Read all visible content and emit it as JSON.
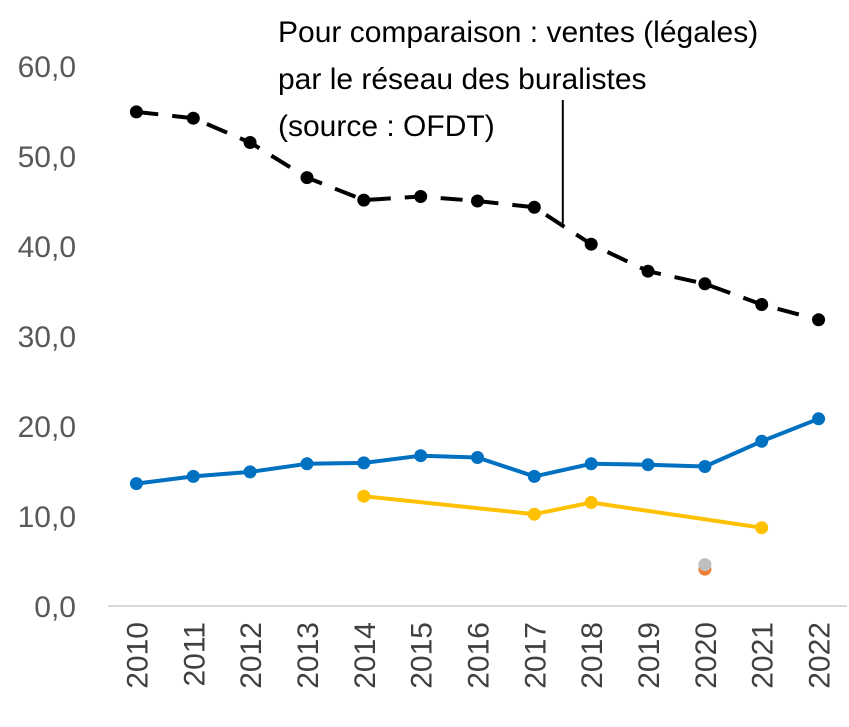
{
  "chart_data": {
    "type": "line",
    "title": "",
    "xlabel": "",
    "ylabel": "",
    "ylim": [
      0,
      60
    ],
    "yticks": [
      "0,0",
      "10,0",
      "20,0",
      "30,0",
      "40,0",
      "50,0",
      "60,0"
    ],
    "grid": false,
    "x": [
      2010,
      2011,
      2012,
      2013,
      2014,
      2015,
      2016,
      2017,
      2018,
      2019,
      2020,
      2021,
      2022
    ],
    "series": [
      {
        "name": "",
        "color": "#000000",
        "style": "dashed",
        "values": [
          54.9,
          54.2,
          51.5,
          47.6,
          45.1,
          45.5,
          45.0,
          44.3,
          40.2,
          37.2,
          35.8,
          33.5,
          31.8
        ]
      },
      {
        "name": "",
        "color": "#0070C0",
        "style": "solid",
        "values": [
          13.6,
          14.4,
          14.9,
          15.8,
          15.9,
          16.7,
          16.5,
          14.4,
          15.8,
          15.7,
          15.5,
          18.3,
          20.8
        ]
      },
      {
        "name": "",
        "color": "#FFC000",
        "style": "solid",
        "values": [
          null,
          null,
          null,
          null,
          12.2,
          null,
          null,
          10.2,
          11.5,
          null,
          null,
          8.7,
          null
        ]
      },
      {
        "name": "",
        "color": "#ED7D31",
        "style": "point",
        "values": [
          null,
          null,
          null,
          null,
          null,
          null,
          null,
          null,
          null,
          null,
          4.1,
          null,
          null
        ]
      },
      {
        "name": "",
        "color": "#BFBFBF",
        "style": "point",
        "values": [
          null,
          null,
          null,
          null,
          null,
          null,
          null,
          null,
          null,
          null,
          4.6,
          null,
          null
        ]
      }
    ],
    "annotation": {
      "lines": [
        "Pour comparaison : ventes (légales)",
        "par le réseau des buralistes",
        "(source : OFDT)"
      ],
      "points_to": {
        "x": 2017.5,
        "y": 42.5
      }
    }
  }
}
